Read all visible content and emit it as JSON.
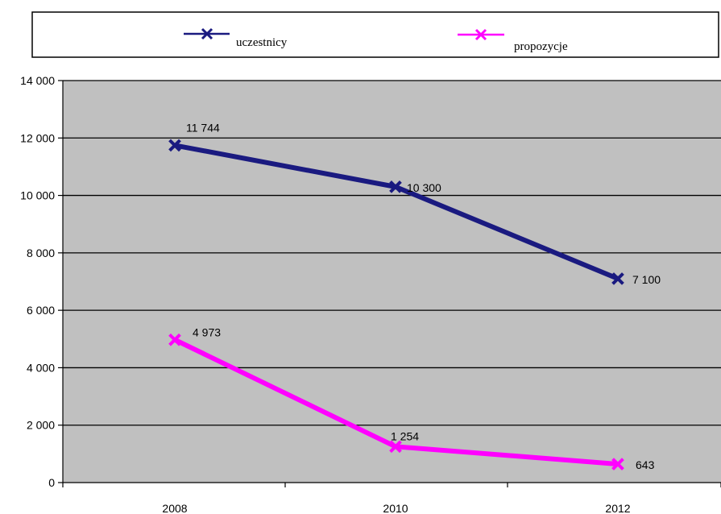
{
  "chart_data": {
    "type": "line",
    "categories": [
      "2008",
      "2010",
      "2012"
    ],
    "y_tick_labels": [
      "0",
      "2 000",
      "4 000",
      "6 000",
      "8 000",
      "10 000",
      "12 000",
      "14 000"
    ],
    "ylim": [
      0,
      14000
    ],
    "grid": true,
    "legend_position": "top",
    "plot_background": "#c0c0c0",
    "series": [
      {
        "name": "uczestnicy",
        "color": "#1a1a80",
        "values": [
          11744,
          10300,
          7100
        ],
        "labels": [
          "11 744",
          "10 300",
          "7 100"
        ]
      },
      {
        "name": "propozycje",
        "color": "#ff00ff",
        "values": [
          4973,
          1254,
          643
        ],
        "labels": [
          "4 973",
          "1 254",
          "643"
        ]
      }
    ]
  }
}
